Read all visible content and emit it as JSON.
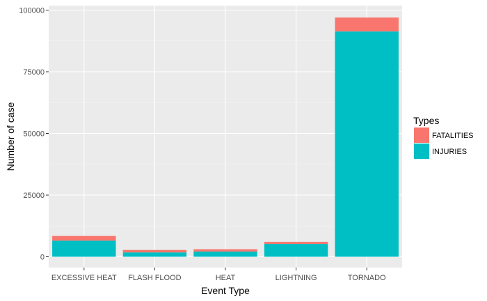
{
  "chart_data": {
    "type": "bar",
    "stacked": true,
    "categories": [
      "EXCESSIVE HEAT",
      "FLASH FLOOD",
      "HEAT",
      "LIGHTNING",
      "TORNADO"
    ],
    "series": [
      {
        "name": "FATALITIES",
        "color": "#F8766D",
        "values": [
          1903,
          978,
          937,
          816,
          5633
        ]
      },
      {
        "name": "INJURIES",
        "color": "#00BFC4",
        "values": [
          6525,
          1777,
          2100,
          5230,
          91346
        ]
      }
    ],
    "xlabel": "Event Type",
    "ylabel": "Number of case",
    "ylim": [
      0,
      100000
    ],
    "yticks": [
      0,
      25000,
      50000,
      75000,
      100000
    ],
    "ytick_labels": [
      "0",
      "25000",
      "50000",
      "75000",
      "100000"
    ],
    "legend": {
      "title": "Types",
      "position": "right"
    },
    "grid": true,
    "panel_color": "#EBEBEB"
  }
}
